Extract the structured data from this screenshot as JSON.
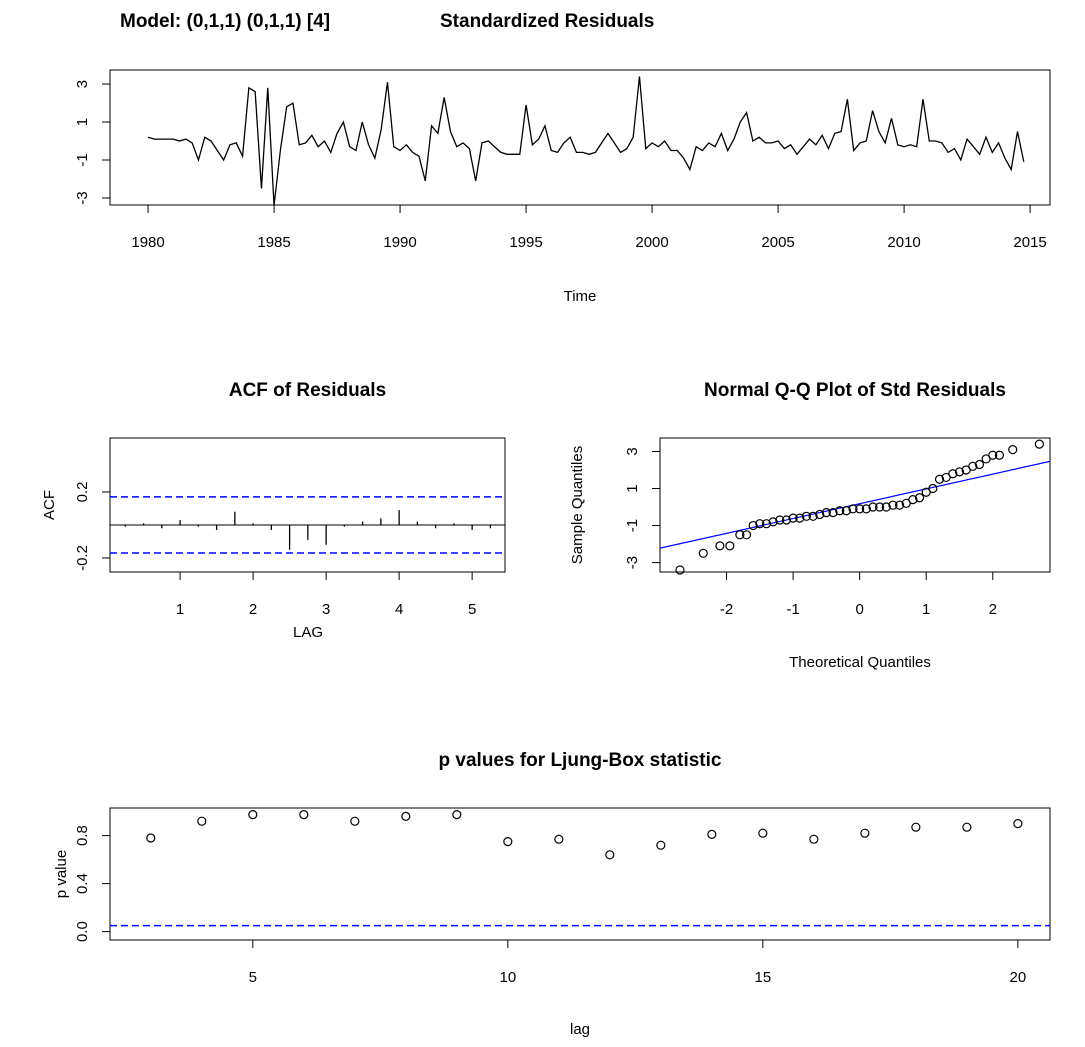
{
  "chart_data": [
    {
      "type": "line",
      "title": "Model: (0,1,1) (0,1,1) [4]",
      "subtitle": "Standardized Residuals",
      "xlabel": "Time",
      "color": "#000000",
      "xlim": [
        1978.49,
        2015.79
      ],
      "ylim": [
        -3.37,
        3.74
      ],
      "xticks": [
        1980,
        1985,
        1990,
        1995,
        2000,
        2005,
        2010,
        2015
      ],
      "yticks": [
        -3,
        -1,
        1,
        3
      ],
      "x": [
        1980,
        1980.25,
        1980.5,
        1980.75,
        1981,
        1981.25,
        1981.5,
        1981.75,
        1982,
        1982.25,
        1982.5,
        1982.75,
        1983,
        1983.25,
        1983.5,
        1983.75,
        1984,
        1984.25,
        1984.5,
        1984.75,
        1985,
        1985.25,
        1985.5,
        1985.75,
        1986,
        1986.25,
        1986.5,
        1986.75,
        1987,
        1987.25,
        1987.5,
        1987.75,
        1988,
        1988.25,
        1988.5,
        1988.75,
        1989,
        1989.25,
        1989.5,
        1989.75,
        1990,
        1990.25,
        1990.5,
        1990.75,
        1991,
        1991.25,
        1991.5,
        1991.75,
        1992,
        1992.25,
        1992.5,
        1992.75,
        1993,
        1993.25,
        1993.5,
        1993.75,
        1994,
        1994.25,
        1994.5,
        1994.75,
        1995,
        1995.25,
        1995.5,
        1995.75,
        1996,
        1996.25,
        1996.5,
        1996.75,
        1997,
        1997.25,
        1997.5,
        1997.75,
        1998,
        1998.25,
        1998.5,
        1998.75,
        1999,
        1999.25,
        1999.5,
        1999.75,
        2000,
        2000.25,
        2000.5,
        2000.75,
        2001,
        2001.25,
        2001.5,
        2001.75,
        2002,
        2002.25,
        2002.5,
        2002.75,
        2003,
        2003.25,
        2003.5,
        2003.75,
        2004,
        2004.25,
        2004.5,
        2004.75,
        2005,
        2005.25,
        2005.5,
        2005.75,
        2006,
        2006.25,
        2006.5,
        2006.75,
        2007,
        2007.25,
        2007.5,
        2007.75,
        2008,
        2008.25,
        2008.5,
        2008.75,
        2009,
        2009.25,
        2009.5,
        2009.75,
        2010,
        2010.25,
        2010.5,
        2010.75,
        2011,
        2011.25,
        2011.5,
        2011.75,
        2012,
        2012.25,
        2012.5,
        2012.75,
        2013,
        2013.25,
        2013.5,
        2013.75,
        2014,
        2014.25,
        2014.5,
        2014.75
      ],
      "values": [
        0.2,
        0.1,
        0.1,
        0.1,
        0.1,
        0.0,
        0.1,
        -0.1,
        -1.0,
        0.2,
        0.0,
        -0.5,
        -1.0,
        -0.2,
        -0.1,
        -0.8,
        2.8,
        2.6,
        -2.5,
        2.8,
        -3.4,
        -0.5,
        1.8,
        2.0,
        -0.2,
        -0.1,
        0.3,
        -0.3,
        0.0,
        -0.6,
        0.4,
        1.0,
        -0.3,
        -0.5,
        1.0,
        -0.2,
        -0.9,
        0.6,
        3.1,
        -0.3,
        -0.5,
        -0.2,
        -0.6,
        -0.8,
        -2.1,
        0.8,
        0.4,
        2.3,
        0.5,
        -0.3,
        -0.1,
        -0.4,
        -2.1,
        -0.1,
        0.0,
        -0.3,
        -0.6,
        -0.7,
        -0.7,
        -0.7,
        1.9,
        -0.2,
        0.1,
        0.8,
        -0.5,
        -0.6,
        -0.1,
        0.2,
        -0.6,
        -0.6,
        -0.7,
        -0.6,
        -0.1,
        0.4,
        -0.1,
        -0.6,
        -0.4,
        0.2,
        3.4,
        -0.4,
        -0.1,
        -0.3,
        0.0,
        -0.5,
        -0.5,
        -0.9,
        -1.5,
        -0.3,
        -0.5,
        -0.1,
        -0.3,
        0.4,
        -0.5,
        0.1,
        1.0,
        1.5,
        0.0,
        0.2,
        -0.1,
        -0.1,
        0.0,
        -0.4,
        -0.2,
        -0.7,
        -0.3,
        0.1,
        -0.2,
        0.3,
        -0.4,
        0.4,
        0.5,
        2.2,
        -0.5,
        -0.1,
        0.0,
        1.6,
        0.5,
        -0.1,
        1.2,
        -0.2,
        -0.3,
        -0.2,
        -0.3,
        2.2,
        0.0,
        0.0,
        -0.1,
        -0.6,
        -0.4,
        -1.0,
        0.1,
        -0.3,
        -0.7,
        0.2,
        -0.6,
        -0.1,
        -0.9,
        -1.5,
        0.5,
        -1.1
      ]
    },
    {
      "type": "bar",
      "title": "ACF of Residuals",
      "xlabel": "LAG",
      "ylabel": "ACF",
      "color": "#000000",
      "xlim": [
        0.04,
        5.45
      ],
      "ylim": [
        -0.285,
        0.527
      ],
      "xticks": [
        1,
        2,
        3,
        4,
        5
      ],
      "yticks": [
        -0.2,
        0.2
      ],
      "hlines": [
        0.17,
        -0.17
      ],
      "hline_color": "#0000ff",
      "x": [
        0.25,
        0.5,
        0.75,
        1,
        1.25,
        1.5,
        1.75,
        2,
        2.25,
        2.5,
        2.75,
        3,
        3.25,
        3.5,
        3.75,
        4,
        4.25,
        4.5,
        4.75,
        5,
        5.25
      ],
      "values": [
        -0.01,
        0.01,
        -0.02,
        0.03,
        -0.01,
        -0.03,
        0.08,
        0.01,
        -0.03,
        -0.15,
        -0.09,
        -0.12,
        -0.01,
        0.02,
        0.04,
        0.09,
        0.02,
        -0.02,
        0.01,
        -0.03,
        -0.02
      ]
    },
    {
      "type": "scatter",
      "title": "Normal Q-Q Plot of Std Residuals",
      "xlabel": "Theoretical Quantiles",
      "ylabel": "Sample Quantiles",
      "color": "#000000",
      "xlim": [
        -3.0,
        2.86
      ],
      "ylim": [
        -3.51,
        3.73
      ],
      "xticks": [
        -2,
        -1,
        0,
        1,
        2
      ],
      "yticks": [
        -3,
        -1,
        1,
        3
      ],
      "ref_line": {
        "intercept": 0.18,
        "slope": 0.8,
        "color": "#0000ff"
      },
      "x": [
        -2.7,
        -2.35,
        -2.1,
        -1.95,
        -1.8,
        -1.7,
        -1.6,
        -1.5,
        -1.4,
        -1.3,
        -1.2,
        -1.1,
        -1.0,
        -0.9,
        -0.8,
        -0.7,
        -0.6,
        -0.5,
        -0.4,
        -0.3,
        -0.2,
        -0.1,
        0,
        0.1,
        0.2,
        0.3,
        0.4,
        0.5,
        0.6,
        0.7,
        0.8,
        0.9,
        1.0,
        1.1,
        1.2,
        1.3,
        1.4,
        1.5,
        1.6,
        1.7,
        1.8,
        1.9,
        2.0,
        2.1,
        2.3,
        2.7
      ],
      "values": [
        -3.4,
        -2.5,
        -2.1,
        -2.1,
        -1.5,
        -1.5,
        -1.0,
        -0.9,
        -0.9,
        -0.8,
        -0.7,
        -0.7,
        -0.6,
        -0.6,
        -0.5,
        -0.5,
        -0.4,
        -0.3,
        -0.3,
        -0.2,
        -0.2,
        -0.1,
        -0.1,
        -0.1,
        0,
        0,
        0.0,
        0.1,
        0.1,
        0.2,
        0.4,
        0.5,
        0.8,
        1.0,
        1.5,
        1.6,
        1.8,
        1.9,
        2.0,
        2.2,
        2.3,
        2.6,
        2.8,
        2.8,
        3.1,
        3.4
      ]
    },
    {
      "type": "scatter",
      "title": "p values for Ljung-Box statistic",
      "xlabel": "lag",
      "ylabel": "p value",
      "color": "#000000",
      "xlim": [
        2.2,
        20.63
      ],
      "ylim": [
        -0.07,
        1.03
      ],
      "xticks": [
        5,
        10,
        15,
        20
      ],
      "yticks": [
        {
          "value": 0,
          "label": "0.0"
        },
        0.4,
        0.8
      ],
      "hlines": [
        0.05
      ],
      "hline_color": "#0000ff",
      "x": [
        3,
        4,
        5,
        6,
        7,
        8,
        9,
        10,
        11,
        12,
        13,
        14,
        15,
        16,
        17,
        18,
        19,
        20
      ],
      "values": [
        0.78,
        0.92,
        0.975,
        0.975,
        0.92,
        0.96,
        0.975,
        0.75,
        0.77,
        0.64,
        0.72,
        0.81,
        0.82,
        0.77,
        0.82,
        0.87,
        0.87,
        0.9
      ]
    }
  ]
}
